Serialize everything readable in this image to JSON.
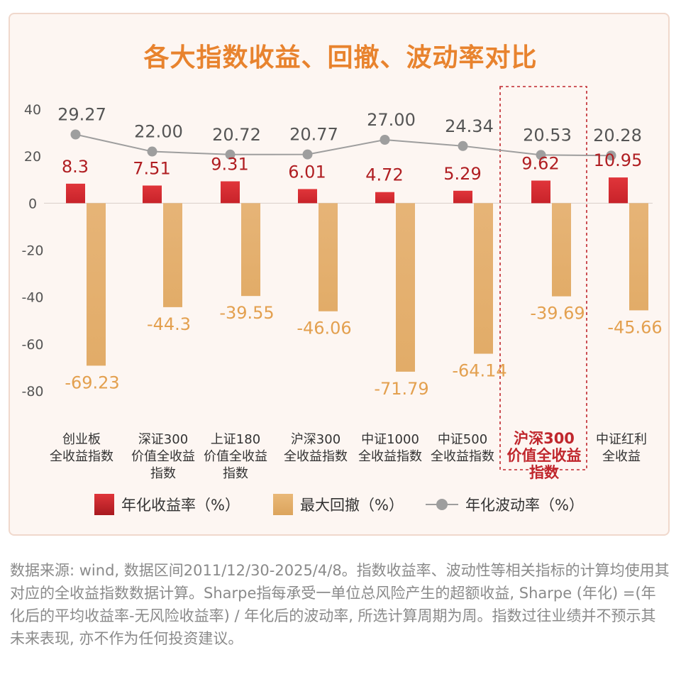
{
  "title": "各大指数收益、回撤、波动率对比",
  "note": "数据来源: wind, 数据区间2011/12/30-2025/4/8。指数收益率、波动性等相关指标的计算均使用其对应的全收益指数数据计算。Sharpe指每承受一单位总风险产生的超额收益, Sharpe (年化) =(年化后的平均收益率-无风险收益率) / 年化后的波动率, 所选计算周期为周。指数过往业绩并不预示其未来表现, 亦不作为任何投资建议。",
  "colors": {
    "return_bar": "#c8232a",
    "drawdown_bar": "#e2ac68",
    "volatility_line": "#9e9e9e",
    "title": "#e8832e",
    "return_label": "#b01e22",
    "drawdown_label": "#e3a04f",
    "volatility_label": "#555555",
    "highlight": "#c0272d"
  },
  "chart_data": {
    "type": "bar",
    "categories": [
      [
        "创业板",
        "全收益指数"
      ],
      [
        "深证300",
        "价值全收益",
        "指数"
      ],
      [
        "上证180",
        "价值全收益",
        "指数"
      ],
      [
        "沪深300",
        "全收益指数"
      ],
      [
        "中证1000",
        "全收益指数"
      ],
      [
        "中证500",
        "全收益指数"
      ],
      [
        "沪深300",
        "价值全收益",
        "指数"
      ],
      [
        "中证红利",
        "全收益"
      ]
    ],
    "highlighted_index": 6,
    "yticks": [
      "40",
      "20",
      "0",
      "-20",
      "-40",
      "-60",
      "-80"
    ],
    "ylim": [
      -80,
      40
    ],
    "series": [
      {
        "name": "年化收益率（%）",
        "kind": "bar",
        "values": [
          8.3,
          7.51,
          9.31,
          6.01,
          4.72,
          5.29,
          9.62,
          10.95
        ],
        "labels": [
          "8.3",
          "7.51",
          "9.31",
          "6.01",
          "4.72",
          "5.29",
          "9.62",
          "10.95"
        ]
      },
      {
        "name": "最大回撤（%）",
        "kind": "bar",
        "values": [
          -69.23,
          -44.3,
          -39.55,
          -46.06,
          -71.79,
          -64.14,
          -39.69,
          -45.66
        ],
        "labels": [
          "-69.23",
          "-44.3",
          "-39.55",
          "-46.06",
          "-71.79",
          "-64.14",
          "-39.69",
          "-45.66"
        ]
      },
      {
        "name": "年化波动率（%）",
        "kind": "line",
        "values": [
          29.27,
          22.0,
          20.72,
          20.77,
          27.0,
          24.34,
          20.53,
          20.28
        ],
        "labels": [
          "29.27",
          "22.00",
          "20.72",
          "20.77",
          "27.00",
          "24.34",
          "20.53",
          "20.28"
        ]
      }
    ],
    "legend_position": "bottom"
  }
}
